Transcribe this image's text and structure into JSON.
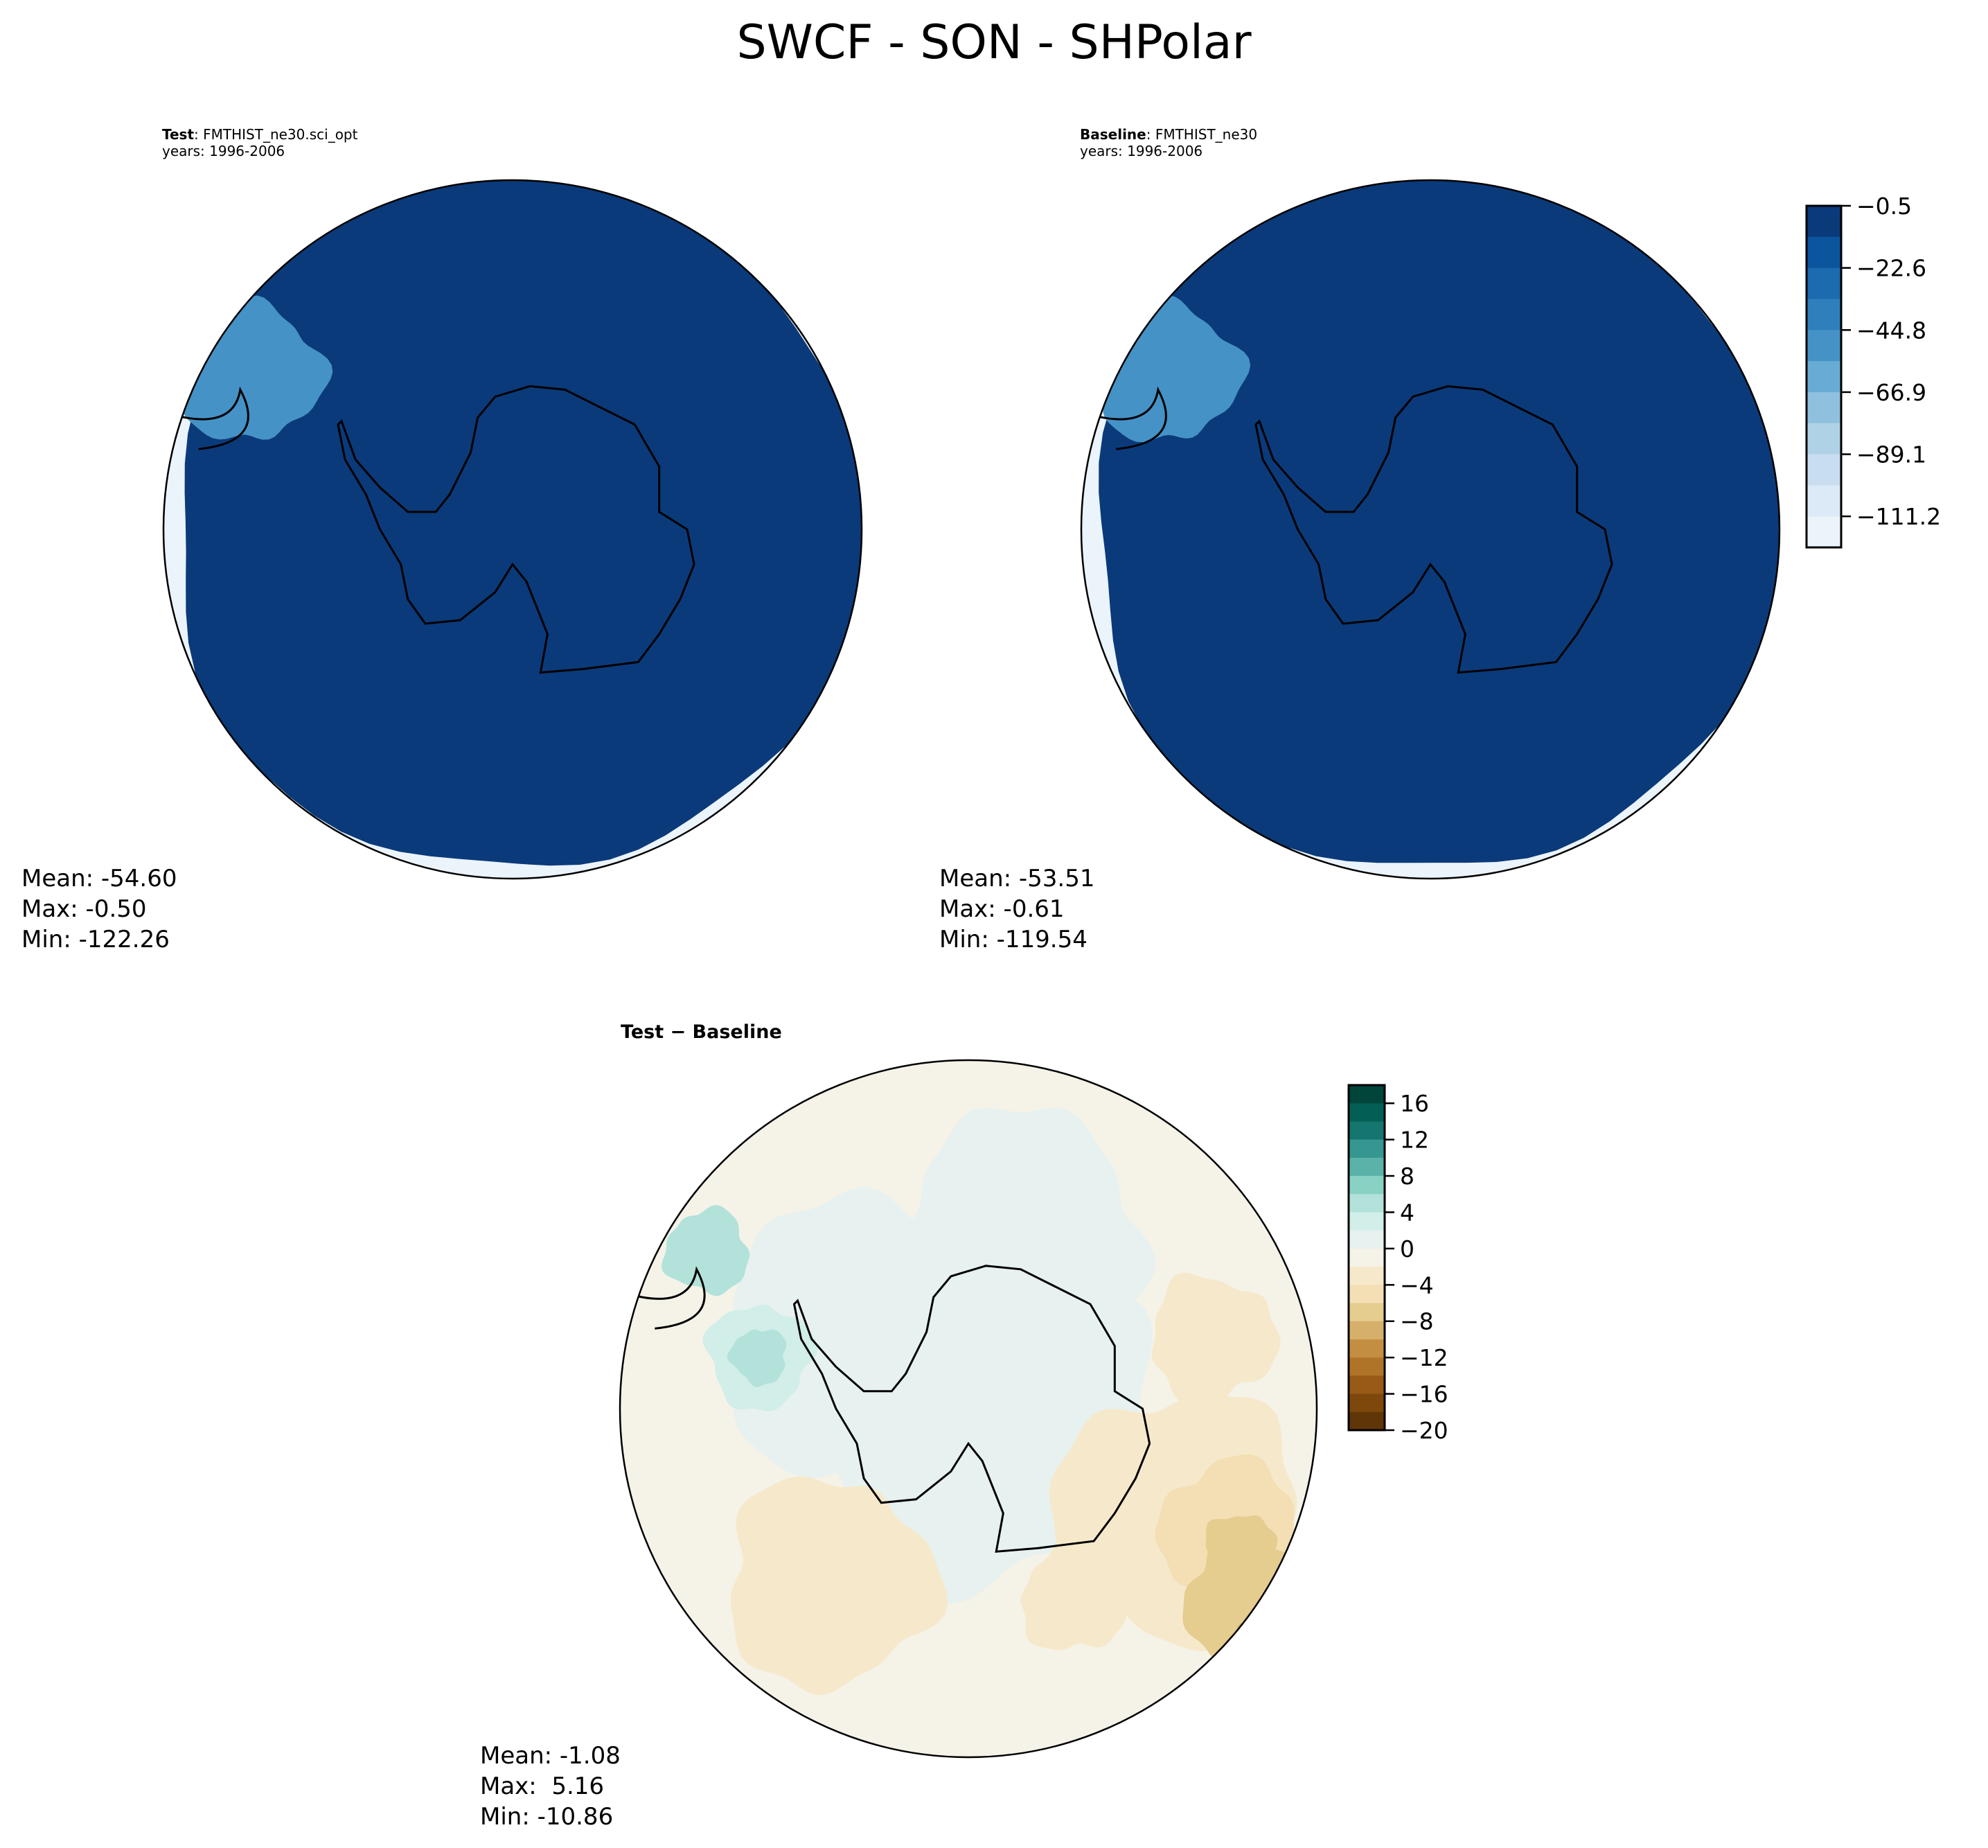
{
  "figure": {
    "title": "SWCF - SON - SHPolar"
  },
  "panels": {
    "test": {
      "label_bold": "Test",
      "label_rest": ": FMTHIST_ne30.sci_opt",
      "years": "years: 1996-2006",
      "mean": "Mean: -54.60",
      "max": "Max: -0.50",
      "min": "Min: -122.26"
    },
    "baseline": {
      "label_bold": "Baseline",
      "label_rest": ": FMTHIST_ne30",
      "years": "years: 1996-2006",
      "mean": "Mean: -53.51",
      "max": "Max: -0.61",
      "min": "Min: -119.54"
    },
    "diff": {
      "label": "Test − Baseline",
      "mean": "Mean: -1.08",
      "max": "Max:  5.16",
      "min": "Min: -10.86"
    }
  },
  "chart_data": [
    {
      "type": "heatmap",
      "subtype": "filled-contour polar stereographic",
      "title": "Test: FMTHIST_ne30.sci_opt",
      "variable": "SWCF",
      "season": "SON",
      "region": "SHPolar",
      "stats": {
        "mean": -54.6,
        "max": -0.5,
        "min": -122.26
      }
    },
    {
      "type": "heatmap",
      "subtype": "filled-contour polar stereographic",
      "title": "Baseline: FMTHIST_ne30",
      "variable": "SWCF",
      "season": "SON",
      "region": "SHPolar",
      "stats": {
        "mean": -53.51,
        "max": -0.61,
        "min": -119.54
      },
      "colorbar": {
        "ticks": [
          "−0.5",
          "−22.6",
          "−44.8",
          "−66.9",
          "−89.1",
          "−111.2"
        ],
        "range": [
          -122.1,
          -0.5
        ],
        "colors": [
          "#0a3a7a",
          "#0b559f",
          "#1c6aaf",
          "#2f7fbc",
          "#4592c6",
          "#68acd5",
          "#8fc1de",
          "#b0d2e7",
          "#c9ddf0",
          "#dce9f6",
          "#ebf3fb"
        ]
      }
    },
    {
      "type": "heatmap",
      "subtype": "filled-contour polar stereographic",
      "title": "Test − Baseline",
      "stats": {
        "mean": -1.08,
        "max": 5.16,
        "min": -10.86
      },
      "colorbar": {
        "ticks": [
          "16",
          "12",
          "8",
          "4",
          "0",
          "−4",
          "−8",
          "−12",
          "−16",
          "−20"
        ],
        "range": [
          -20,
          18
        ],
        "colors": [
          "#01443a",
          "#035f55",
          "#14766e",
          "#35978f",
          "#5ab2a8",
          "#88d1c3",
          "#b2e2da",
          "#d1eee8",
          "#e7f1ef",
          "#f5f2e8",
          "#f6e9cb",
          "#f3dfb3",
          "#e5cc8f",
          "#d6b06a",
          "#c48e42",
          "#b07428",
          "#985a16",
          "#7e470c",
          "#603508"
        ]
      }
    }
  ]
}
